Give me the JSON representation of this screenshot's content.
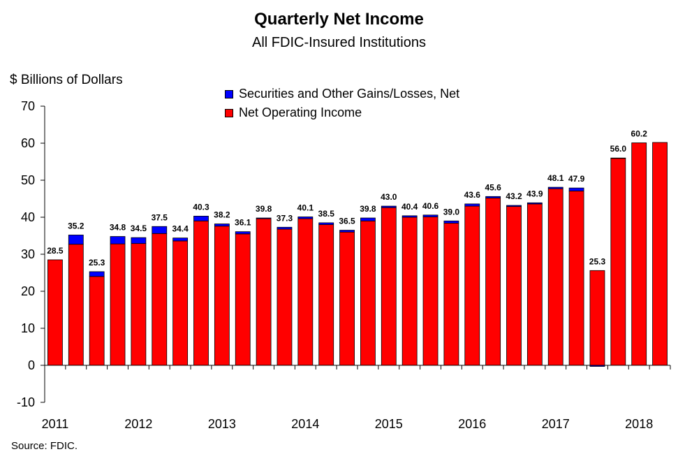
{
  "chart_data": {
    "type": "bar",
    "stacked": true,
    "title": "Quarterly Net Income",
    "subtitle": "All FDIC-Insured Institutions",
    "ylabel": "$ Billions of Dollars",
    "source": "Source:  FDIC.",
    "ylim": [
      -10,
      70
    ],
    "yticks": [
      -10,
      0,
      10,
      20,
      30,
      40,
      50,
      60,
      70
    ],
    "year_labels": [
      "2011",
      "2012",
      "2013",
      "2014",
      "2015",
      "2016",
      "2017",
      "2018"
    ],
    "categories": [
      "2011 Q1",
      "2011 Q2",
      "2011 Q3",
      "2011 Q4",
      "2012 Q1",
      "2012 Q2",
      "2012 Q3",
      "2012 Q4",
      "2013 Q1",
      "2013 Q2",
      "2013 Q3",
      "2013 Q4",
      "2014 Q1",
      "2014 Q2",
      "2014 Q3",
      "2014 Q4",
      "2015 Q1",
      "2015 Q2",
      "2015 Q3",
      "2015 Q4",
      "2016 Q1",
      "2016 Q2",
      "2016 Q3",
      "2016 Q4",
      "2017 Q1",
      "2017 Q2",
      "2017 Q3",
      "2017 Q4",
      "2018 Q1",
      "2018 Q2"
    ],
    "series": [
      {
        "name": "Net Operating Income",
        "color": "#ff0000",
        "values": [
          28.5,
          32.7,
          24.0,
          32.8,
          32.9,
          35.6,
          33.6,
          39.0,
          37.6,
          35.5,
          39.6,
          36.8,
          39.6,
          38.0,
          36.0,
          39.0,
          42.6,
          40.0,
          40.1,
          38.4,
          43.0,
          45.2,
          42.9,
          43.6,
          47.7,
          47.1,
          25.6,
          55.9,
          60.1,
          60.2
        ]
      },
      {
        "name": "Securities and Other Gains/Losses, Net",
        "color": "#0000ff",
        "values": [
          0.0,
          2.5,
          1.3,
          2.0,
          1.6,
          1.9,
          0.8,
          1.3,
          0.6,
          0.6,
          0.2,
          0.5,
          0.5,
          0.5,
          0.5,
          0.8,
          0.4,
          0.4,
          0.5,
          0.6,
          0.6,
          0.4,
          0.3,
          0.3,
          0.4,
          0.8,
          -0.3,
          0.1,
          0.0,
          0.0
        ]
      }
    ],
    "totals": [
      "28.5",
      "35.2",
      "25.3",
      "34.8",
      "34.5",
      "37.5",
      "34.4",
      "40.3",
      "38.2",
      "36.1",
      "39.8",
      "37.3",
      "40.1",
      "38.5",
      "36.5",
      "39.8",
      "43.0",
      "40.4",
      "40.6",
      "39.0",
      "43.6",
      "45.6",
      "43.2",
      "43.9",
      "48.1",
      "47.9",
      "25.3",
      "56.0",
      "60.2",
      ""
    ],
    "legend": [
      "Securities and Other Gains/Losses, Net",
      "Net Operating Income"
    ],
    "legend_placement": "top-center",
    "grid": false
  }
}
